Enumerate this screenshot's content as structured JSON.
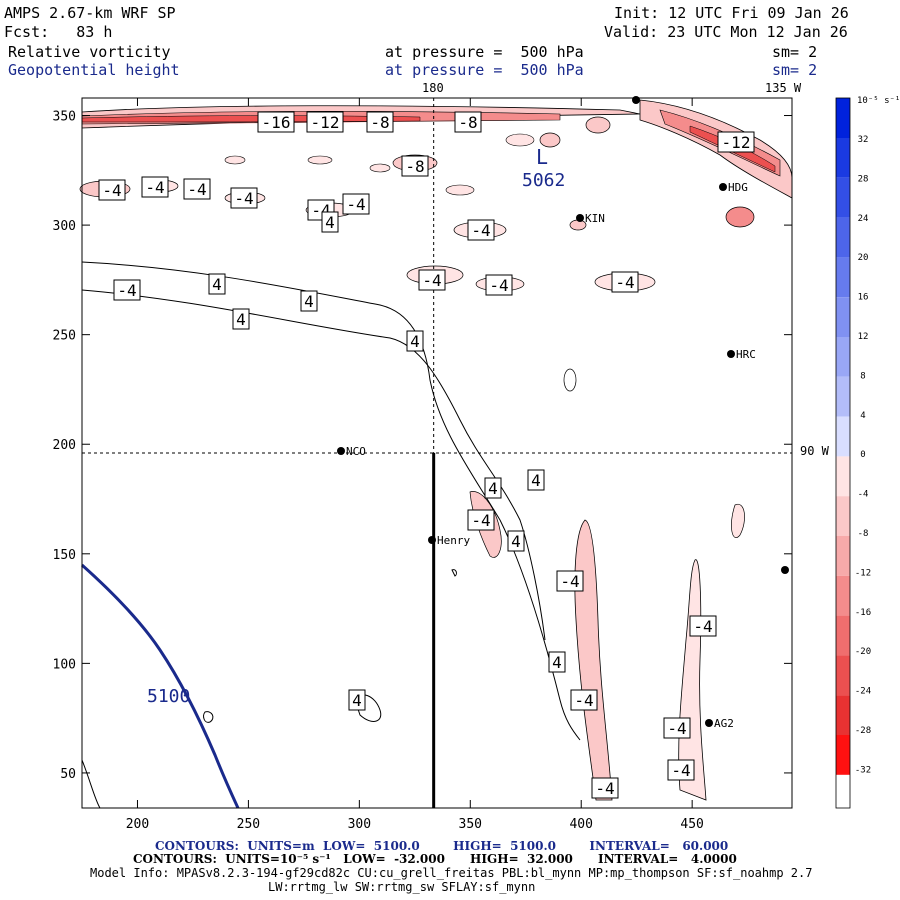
{
  "header": {
    "model_title": "AMPS 2.67-km WRF SP",
    "init_time": "Init: 12 UTC Fri 09 Jan 26",
    "forecast_hour": "Fcst:   83 h",
    "valid_time": "Valid: 23 UTC Mon 12 Jan 26",
    "field1_name": "Relative vorticity",
    "field1_level": "at pressure =  500 hPa",
    "field1_smooth": "sm= 2",
    "field2_name": "Geopotential height",
    "field2_level": "at pressure =  500 hPa",
    "field2_smooth": "sm= 2"
  },
  "map_labels": {
    "lon_180": "180",
    "lon_135w": "135 W",
    "lon_90w": "90 W"
  },
  "colorbar": {
    "unit_label": "10⁻⁵ s⁻¹",
    "ticks": [
      "32",
      "28",
      "24",
      "20",
      "16",
      "12",
      "8",
      "4",
      "0",
      "-4",
      "-8",
      "-12",
      "-16",
      "-20",
      "-24",
      "-28",
      "-32"
    ],
    "colors": [
      "#0022dd",
      "#1a3ae2",
      "#334fe6",
      "#4d65ea",
      "#667bee",
      "#8091f2",
      "#99a7f6",
      "#b3bdf9",
      "#d9deff",
      "#ffe4e4",
      "#fbc8c8",
      "#f7aaaa",
      "#f48c8c",
      "#f06e6e",
      "#ec5050",
      "#e83232",
      "#ff1111"
    ]
  },
  "stations": [
    {
      "name": "NCO"
    },
    {
      "name": "Henry"
    },
    {
      "name": "HRC"
    },
    {
      "name": "HDG"
    },
    {
      "name": "KIN"
    },
    {
      "name": "AG2"
    }
  ],
  "contour_labels": {
    "height": [
      "5100",
      "5062"
    ],
    "low_marker": "L",
    "vorticity": [
      "-16",
      "-12",
      "-8",
      "-4",
      "-12",
      "-8",
      "-4",
      "-4",
      "-8",
      "-4",
      "-4",
      "-4",
      "-4",
      "-4",
      "-4",
      "-4",
      "-4",
      "-4",
      "-4",
      "-4",
      "-4",
      "-4",
      "-4",
      "-4",
      "4",
      "4",
      "4",
      "4",
      "4",
      "4",
      "4",
      "4",
      "4",
      "4"
    ]
  },
  "footer": {
    "line1": "CONTOURS:  UNITS=m  LOW=  5100.0        HIGH=  5100.0        INTERVAL=   60.000",
    "line2": "CONTOURS:  UNITS=10⁻⁵ s⁻¹   LOW=  -32.000      HIGH=  32.000      INTERVAL=   4.0000",
    "line3": "Model Info: MPASv8.2.3-194-gf29cd82c CU:cu_grell_freitas PBL:bl_mynn MP:mp_thompson SF:sf_noahmp 2.7",
    "line4": "LW:rrtmg_lw SW:rrtmg_sw SFLAY:sf_mynn"
  },
  "chart_data": {
    "type": "contour map",
    "title": "Relative vorticity / Geopotential height at 500 hPa",
    "x_ticks": [
      200,
      250,
      300,
      350,
      400,
      450
    ],
    "y_ticks": [
      50,
      100,
      150,
      200,
      250,
      300,
      350
    ],
    "xlim": [
      175,
      495
    ],
    "ylim": [
      34,
      358
    ],
    "cross_lines": {
      "x": 333.5,
      "y": 196
    },
    "vorticity_contour_interval": 4.0,
    "vorticity_low": -32.0,
    "vorticity_high": 32.0,
    "height_contour_interval": 60.0,
    "height_low": 5100.0,
    "height_high": 5100.0
  }
}
